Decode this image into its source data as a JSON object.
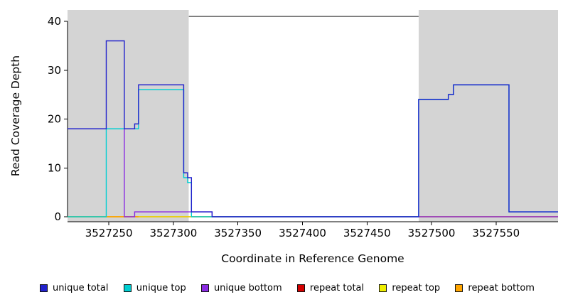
{
  "axes": {
    "xlabel": "Coordinate in Reference Genome",
    "ylabel": "Read Coverage Depth"
  },
  "chart_data": {
    "type": "line",
    "subtype": "step-coverage-plot",
    "title": "",
    "xlabel": "Coordinate in Reference Genome",
    "ylabel": "Read Coverage Depth",
    "xlim": [
      3527218,
      3527598
    ],
    "ylim": [
      0,
      42
    ],
    "x_ticks": [
      3527250,
      3527300,
      3527350,
      3527400,
      3527450,
      3527500,
      3527550
    ],
    "y_ticks": [
      0,
      10,
      20,
      30,
      40
    ],
    "grid": false,
    "legend_position": "bottom",
    "shaded_regions": [
      {
        "name": "left-shaded-region",
        "x_start": 3527218,
        "x_end": 3527312,
        "color": "#D4D4D4"
      },
      {
        "name": "right-shaded-region",
        "x_start": 3527490,
        "x_end": 3527598,
        "color": "#D4D4D4"
      }
    ],
    "max_line": {
      "y": 41,
      "x_start": 3527312,
      "x_end": 3527490,
      "color": "#444444"
    },
    "series": [
      {
        "name": "repeat total",
        "color": "#D40000",
        "segments": [
          {
            "x1": 3527218,
            "x2": 3527598,
            "y": 0
          }
        ]
      },
      {
        "name": "repeat top",
        "color": "#EEEE00",
        "segments": [
          {
            "x1": 3527218,
            "x2": 3527598,
            "y": 0
          }
        ]
      },
      {
        "name": "repeat bottom",
        "color": "#FFA500",
        "segments": [
          {
            "x1": 3527248,
            "x2": 3527273,
            "y": 0
          }
        ]
      },
      {
        "name": "unique bottom",
        "color": "#8A2BE2",
        "segments": [
          {
            "x1": 3527218,
            "x2": 3527262,
            "y": 18
          },
          {
            "x1": 3527262,
            "x2": 3527270,
            "y": 0
          },
          {
            "x1": 3527270,
            "x2": 3527330,
            "y": 1
          },
          {
            "x1": 3527330,
            "x2": 3527598,
            "y": 0
          }
        ]
      },
      {
        "name": "unique top",
        "color": "#00CED1",
        "segments": [
          {
            "x1": 3527218,
            "x2": 3527248,
            "y": 0
          },
          {
            "x1": 3527248,
            "x2": 3527273,
            "y": 18
          },
          {
            "x1": 3527273,
            "x2": 3527308,
            "y": 26
          },
          {
            "x1": 3527308,
            "x2": 3527311,
            "y": 8
          },
          {
            "x1": 3527311,
            "x2": 3527314,
            "y": 7
          },
          {
            "x1": 3527314,
            "x2": 3527490,
            "y": 0
          },
          {
            "x1": 3527490,
            "x2": 3527513,
            "y": 24
          },
          {
            "x1": 3527513,
            "x2": 3527517,
            "y": 25
          },
          {
            "x1": 3527517,
            "x2": 3527560,
            "y": 27
          },
          {
            "x1": 3527560,
            "x2": 3527598,
            "y": 1
          }
        ]
      },
      {
        "name": "unique total",
        "color": "#2222CC",
        "segments": [
          {
            "x1": 3527218,
            "x2": 3527248,
            "y": 18
          },
          {
            "x1": 3527248,
            "x2": 3527262,
            "y": 36
          },
          {
            "x1": 3527262,
            "x2": 3527270,
            "y": 18
          },
          {
            "x1": 3527270,
            "x2": 3527273,
            "y": 19
          },
          {
            "x1": 3527273,
            "x2": 3527308,
            "y": 27
          },
          {
            "x1": 3527308,
            "x2": 3527311,
            "y": 9
          },
          {
            "x1": 3527311,
            "x2": 3527314,
            "y": 8
          },
          {
            "x1": 3527314,
            "x2": 3527330,
            "y": 1
          },
          {
            "x1": 3527330,
            "x2": 3527490,
            "y": 0
          },
          {
            "x1": 3527490,
            "x2": 3527513,
            "y": 24
          },
          {
            "x1": 3527513,
            "x2": 3527517,
            "y": 25
          },
          {
            "x1": 3527517,
            "x2": 3527560,
            "y": 27
          },
          {
            "x1": 3527560,
            "x2": 3527598,
            "y": 1
          }
        ]
      }
    ]
  },
  "legend": {
    "items": [
      {
        "label": "unique total",
        "color": "#2222CC"
      },
      {
        "label": "unique top",
        "color": "#00CED1"
      },
      {
        "label": "unique bottom",
        "color": "#8A2BE2"
      },
      {
        "label": "repeat total",
        "color": "#D40000"
      },
      {
        "label": "repeat top",
        "color": "#EEEE00"
      },
      {
        "label": "repeat bottom",
        "color": "#FFA500"
      }
    ]
  }
}
